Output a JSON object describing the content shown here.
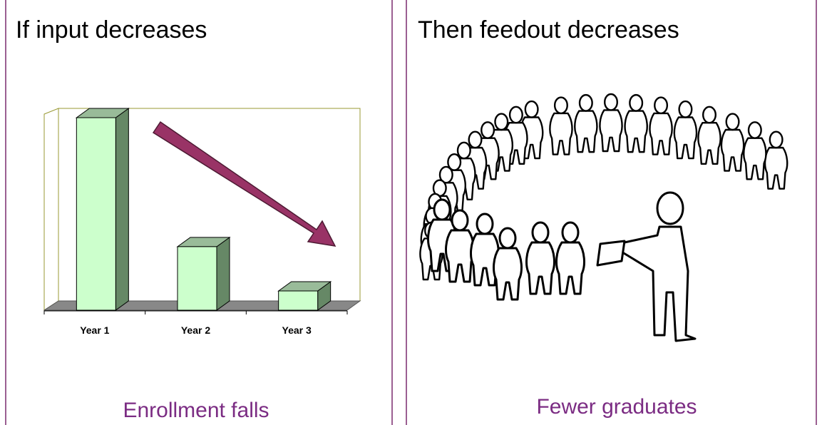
{
  "left_panel": {
    "title": "If input decreases",
    "caption": "Enrollment falls",
    "chart_data": {
      "type": "bar3d",
      "categories": [
        "Year 1",
        "Year 2",
        "Year 3"
      ],
      "values": [
        100,
        33,
        10
      ],
      "ylim": [
        0,
        100
      ],
      "color": "#ccffcc"
    }
  },
  "right_panel": {
    "title": "Then feedout decreases",
    "caption": "Fewer graduates"
  }
}
